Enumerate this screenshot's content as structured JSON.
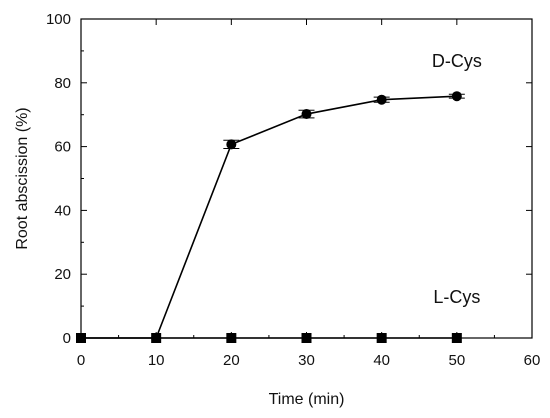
{
  "chart_data": {
    "type": "line",
    "xlabel": "Time (min)",
    "ylabel": "Root abscission (%)",
    "xlim": [
      0,
      60
    ],
    "ylim": [
      0,
      100
    ],
    "xticks": [
      0,
      10,
      20,
      30,
      40,
      50,
      60
    ],
    "yticks": [
      0,
      20,
      40,
      60,
      80,
      100
    ],
    "grid": false,
    "legend": "none",
    "series": [
      {
        "name": "D-Cys",
        "marker": "circle",
        "x": [
          0,
          10,
          20,
          30,
          40,
          50
        ],
        "y": [
          0,
          0,
          60.7,
          70.2,
          74.7,
          75.8
        ],
        "error": [
          0,
          0,
          1.3,
          1.2,
          0.8,
          0.6
        ]
      },
      {
        "name": "L-Cys",
        "marker": "square",
        "x": [
          0,
          10,
          20,
          30,
          40,
          50
        ],
        "y": [
          0,
          0,
          0,
          0,
          0,
          0
        ],
        "error": [
          0,
          0,
          0,
          0,
          0,
          0
        ]
      }
    ],
    "series_labels": [
      {
        "text": "D-Cys",
        "x": 50,
        "y": 85
      },
      {
        "text": "L-Cys",
        "x": 50,
        "y": 11
      }
    ]
  }
}
